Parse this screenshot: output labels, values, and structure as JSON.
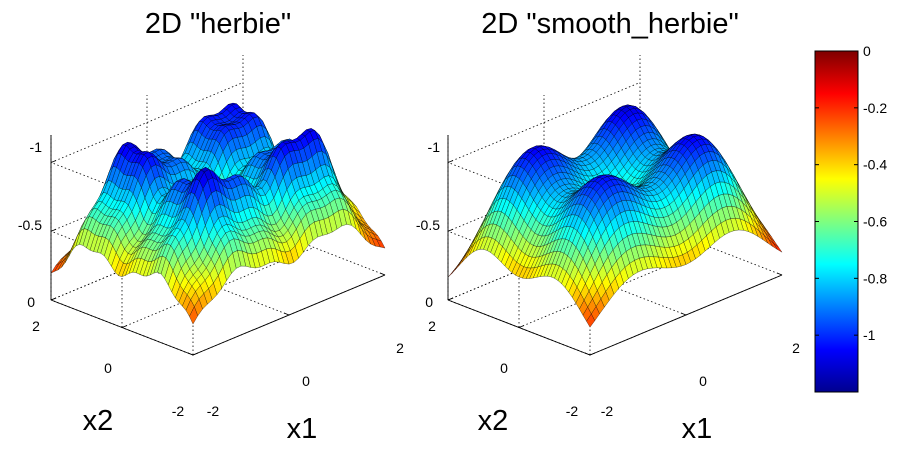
{
  "chart_data": [
    {
      "type": "surface",
      "title": "2D \"herbie\"",
      "xlabel": "x1",
      "ylabel": "x2",
      "xlim": [
        -2,
        2
      ],
      "ylim": [
        -2,
        2
      ],
      "zlim": [
        0,
        -1.2
      ],
      "x_ticks": [
        "-2",
        "0",
        "2"
      ],
      "y_ticks": [
        "-2",
        "0",
        "2"
      ],
      "z_ticks": [
        "0",
        "-0.5",
        "-1"
      ],
      "function": "herbie",
      "grid": true,
      "colormap": "jet",
      "z_reversed": true
    },
    {
      "type": "surface",
      "title": "2D \"smooth_herbie\"",
      "xlabel": "x1",
      "ylabel": "x2",
      "xlim": [
        -2,
        2
      ],
      "ylim": [
        -2,
        2
      ],
      "zlim": [
        0,
        -1.2
      ],
      "x_ticks": [
        "-2",
        "0",
        "2"
      ],
      "y_ticks": [
        "-2",
        "0",
        "2"
      ],
      "z_ticks": [
        "0",
        "-0.5",
        "-1"
      ],
      "function": "smooth_herbie",
      "grid": true,
      "colormap": "jet",
      "z_reversed": true
    }
  ],
  "colorbar": {
    "min": -1.2,
    "max": 0,
    "ticks": [
      "0",
      "-0.2",
      "-0.4",
      "-0.6",
      "-0.8",
      "-1"
    ],
    "colormap": "jet"
  }
}
